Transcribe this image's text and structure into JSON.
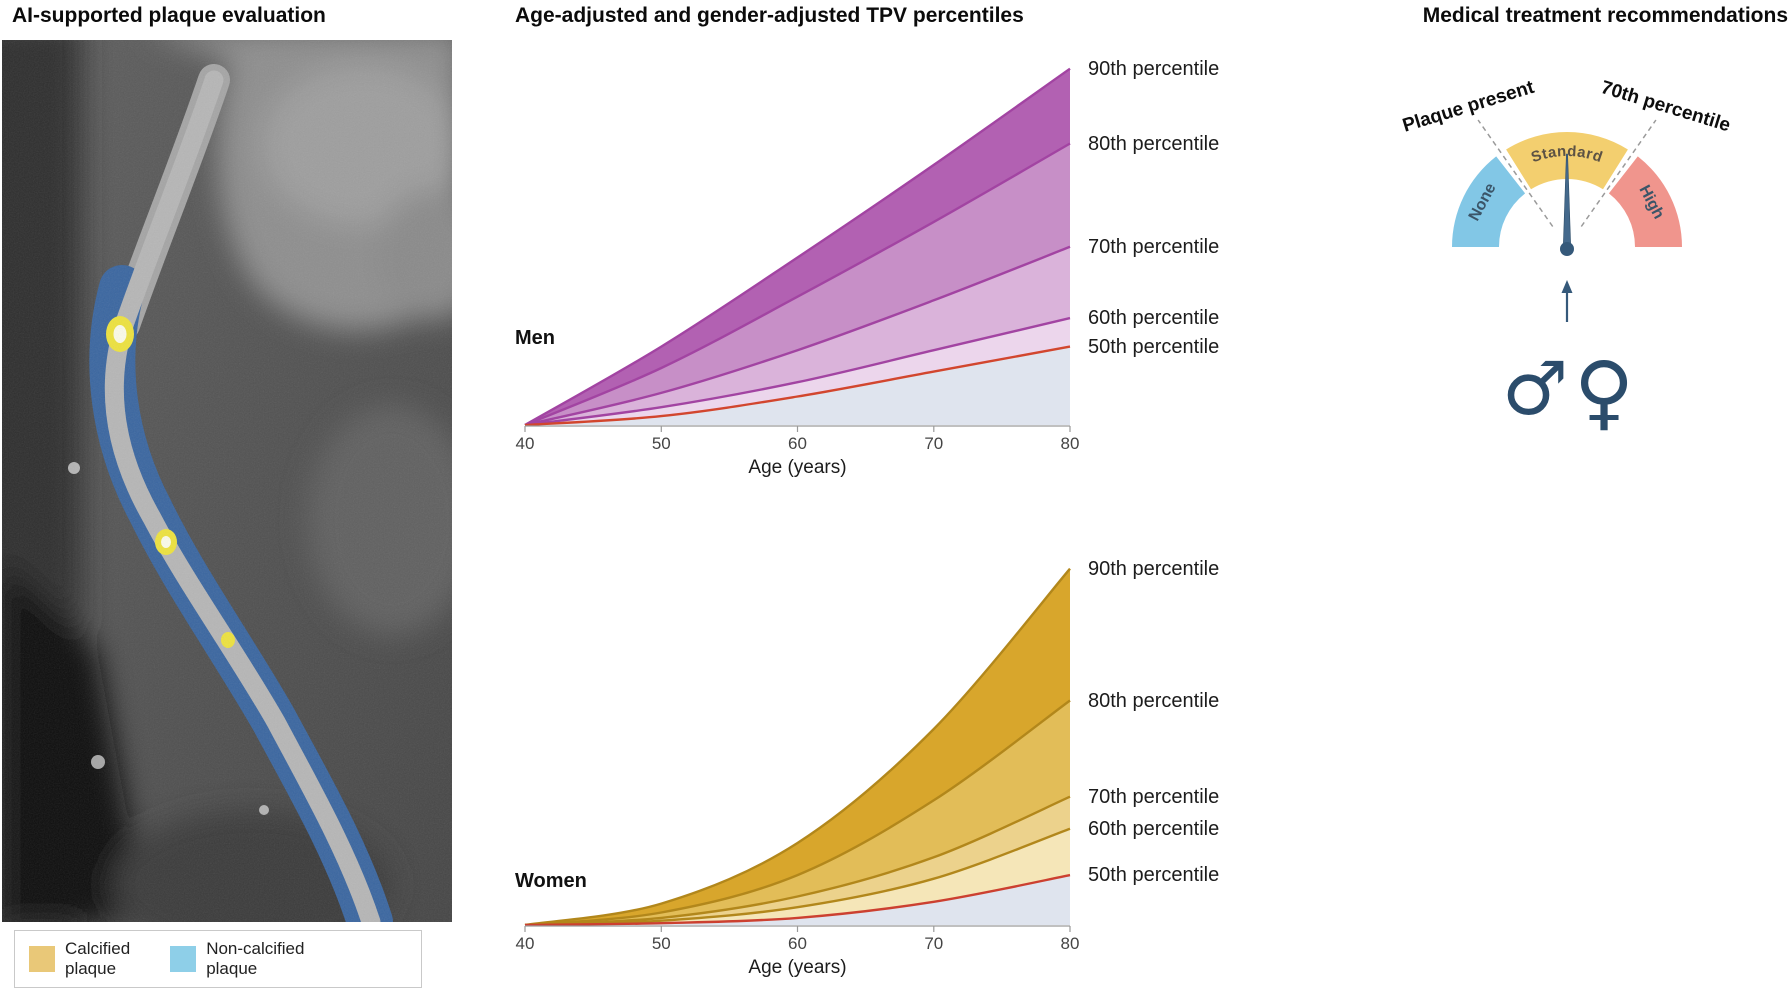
{
  "left": {
    "title": "AI-supported plaque evaluation",
    "ct": {
      "plaque_blue": "#3a66a0",
      "calcified_yellow": "#ede23e"
    },
    "legend": [
      {
        "line1": "Calcified",
        "line2": "plaque",
        "color": "#e9c878"
      },
      {
        "line1": "Non-calcified",
        "line2": "plaque",
        "color": "#8ecfe8"
      }
    ]
  },
  "middle": {
    "title": "Age-adjusted and gender-adjusted TPV percentiles"
  },
  "right": {
    "title": "Medical treatment recommendations",
    "gauge": {
      "left_label": "Plaque present",
      "right_label": "70th percentile",
      "segments": [
        {
          "label": "None",
          "color": "#82c7e6"
        },
        {
          "label": "Standard",
          "color": "#f3cf6f"
        },
        {
          "label": "High",
          "color": "#f0958d"
        }
      ],
      "male_symbol": "♂",
      "female_symbol": "♀",
      "symbol_color": "#2b4c6b",
      "needle_color": "#44698c"
    }
  },
  "chart_data": [
    {
      "type": "area",
      "group_label": "Men",
      "xlabel": "Age (years)",
      "x": [
        40,
        50,
        60,
        70,
        80
      ],
      "xticks": [
        40,
        50,
        60,
        70,
        80
      ],
      "ylim": [
        0,
        103
      ],
      "series": [
        {
          "name": "90th percentile",
          "values": [
            0,
            22,
            47,
            73,
            100
          ]
        },
        {
          "name": "80th percentile",
          "values": [
            0,
            16,
            36,
            57,
            79
          ]
        },
        {
          "name": "70th percentile",
          "values": [
            0,
            9,
            21,
            35,
            50
          ]
        },
        {
          "name": "60th percentile",
          "values": [
            0,
            5,
            12,
            21,
            30
          ]
        },
        {
          "name": "50th percentile",
          "values": [
            0,
            2.5,
            8,
            15,
            22
          ]
        }
      ],
      "band_colors": [
        "#b261b2",
        "#c78fc7",
        "#dab3da",
        "#ecd6ec"
      ],
      "line_color": "#a244a2",
      "p50_color": "#d2462e",
      "under_color": "#dfe4ee"
    },
    {
      "type": "area",
      "group_label": "Women",
      "xlabel": "Age (years)",
      "x": [
        40,
        50,
        60,
        70,
        80
      ],
      "xticks": [
        40,
        50,
        60,
        70,
        80
      ],
      "ylim": [
        0,
        103
      ],
      "series": [
        {
          "name": "90th percentile",
          "values": [
            0,
            6,
            23,
            55,
            100
          ]
        },
        {
          "name": "80th percentile",
          "values": [
            0,
            3.5,
            14,
            35,
            63
          ]
        },
        {
          "name": "70th percentile",
          "values": [
            0,
            2,
            8,
            19,
            36
          ]
        },
        {
          "name": "60th percentile",
          "values": [
            0,
            1.2,
            5,
            13,
            27
          ]
        },
        {
          "name": "50th percentile",
          "values": [
            0,
            0.5,
            2,
            6.5,
            14
          ]
        }
      ],
      "band_colors": [
        "#d8a62c",
        "#e2bd58",
        "#ecd28c",
        "#f5e6b8"
      ],
      "line_color": "#b2871b",
      "p50_color": "#cc4030",
      "under_color": "#dfe4ee"
    }
  ]
}
